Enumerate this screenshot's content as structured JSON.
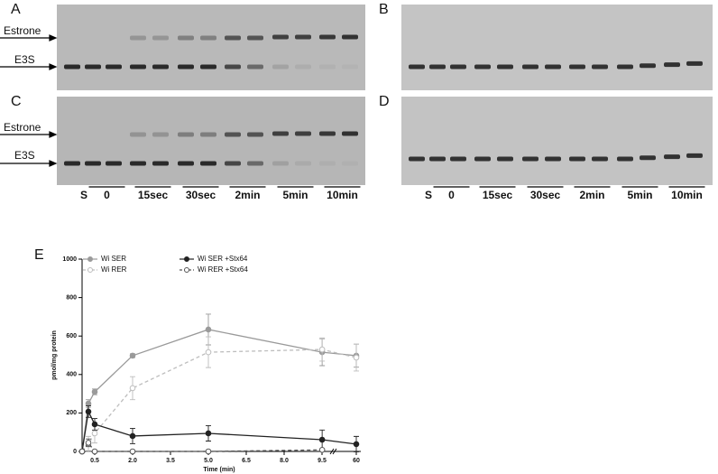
{
  "panel_labels": [
    "A",
    "B",
    "C",
    "D",
    "E"
  ],
  "band_labels": [
    "Estrone",
    "E3S"
  ],
  "lane_labels": [
    "S",
    "0",
    "15sec",
    "30sec",
    "2min",
    "5min",
    "10min"
  ],
  "chart_data": {
    "type": "line",
    "x_label": "Time (min)",
    "y_label": "pmol/mg protein",
    "x": [
      0,
      0.25,
      0.5,
      2,
      5,
      9.7,
      60
    ],
    "xlim": [
      0,
      60
    ],
    "xticks": [
      0.5,
      {
        "value": 2,
        "label": "2.0"
      },
      3.5,
      {
        "value": 5,
        "label": "5.0"
      },
      6.5,
      {
        "value": 8,
        "label": "8.0"
      },
      9.5,
      60
    ],
    "axis_break": true,
    "ylim": [
      0,
      1000
    ],
    "yticks": [
      0,
      200,
      400,
      600,
      800,
      1000
    ],
    "legend": "top-left",
    "series": [
      {
        "name": "Wi SER",
        "color": "#9a9a9a",
        "line_style": "solid",
        "marker": "filled",
        "values": [
          0,
          249,
          310,
          498,
          634,
          516,
          498
        ],
        "errors": [
          0,
          20,
          15,
          10,
          80,
          70,
          60
        ]
      },
      {
        "name": "Wi RER",
        "color": "#bdbdbd",
        "line_style": "dashed",
        "marker": "open",
        "values": [
          0,
          38,
          94,
          329,
          516,
          530,
          488
        ],
        "errors": [
          0,
          40,
          50,
          60,
          80,
          60,
          70
        ]
      },
      {
        "name": "Wi SER +Stx64",
        "color": "#222222",
        "line_style": "solid",
        "marker": "filled",
        "values": [
          0,
          207,
          141,
          80,
          94,
          61,
          38
        ],
        "errors": [
          0,
          30,
          30,
          40,
          40,
          50,
          40
        ]
      },
      {
        "name": "Wi RER +Stx64",
        "color": "#555555",
        "line_style": "dashed",
        "marker": "open",
        "values": [
          0,
          45,
          0,
          0,
          0,
          8,
          null
        ],
        "errors": [
          0,
          20,
          0,
          0,
          0,
          5,
          null
        ]
      }
    ]
  }
}
